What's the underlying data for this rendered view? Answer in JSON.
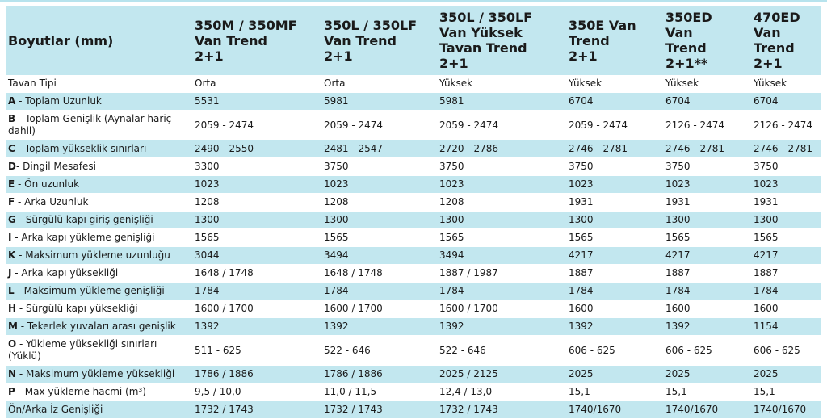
{
  "colors": {
    "row_highlight": "#c2e7ef",
    "top_rule": "#b7e3ed",
    "text": "#1a1a1a",
    "row_plain": "#ffffff"
  },
  "table": {
    "corner_header": "Boyutlar (mm)",
    "columns": [
      "350M / 350MF\nVan Trend\n2+1",
      "350L / 350LF\nVan Trend\n2+1",
      "350L / 350LF\nVan Yüksek\nTavan Trend\n2+1",
      "350E Van\nTrend\n2+1",
      "350ED\nVan\nTrend\n2+1**",
      "470ED\nVan\nTrend\n2+1"
    ],
    "rows": [
      {
        "label_prefix": "",
        "label_text": "Tavan Tipi",
        "values": [
          "Orta",
          "Orta",
          "Yüksek",
          "Yüksek",
          "Yüksek",
          "Yüksek"
        ]
      },
      {
        "label_prefix": "A",
        "label_text": " - Toplam Uzunluk",
        "values": [
          "5531",
          "5981",
          "5981",
          "6704",
          "6704",
          "6704"
        ]
      },
      {
        "label_prefix": "B",
        "label_text": " - Toplam Genişlik (Aynalar hariç -\ndahil)",
        "values": [
          "2059 - 2474",
          "2059 - 2474",
          "2059 - 2474",
          "2059 - 2474",
          "2126 - 2474",
          "2126 - 2474"
        ]
      },
      {
        "label_prefix": "C",
        "label_text": " - Toplam yükseklik sınırları",
        "values": [
          "2490 - 2550",
          "2481 - 2547",
          "2720 - 2786",
          "2746 - 2781",
          "2746 - 2781",
          "2746 - 2781"
        ]
      },
      {
        "label_prefix": "D",
        "label_text": "- Dingil Mesafesi",
        "values": [
          "3300",
          "3750",
          "3750",
          "3750",
          "3750",
          "3750"
        ]
      },
      {
        "label_prefix": "E",
        "label_text": " - Ön uzunluk",
        "values": [
          "1023",
          "1023",
          "1023",
          "1023",
          "1023",
          "1023"
        ]
      },
      {
        "label_prefix": "F",
        "label_text": " - Arka Uzunluk",
        "values": [
          "1208",
          "1208",
          "1208",
          "1931",
          "1931",
          "1931"
        ]
      },
      {
        "label_prefix": "G",
        "label_text": " - Sürgülü kapı giriş genişliği",
        "values": [
          "1300",
          "1300",
          "1300",
          "1300",
          "1300",
          "1300"
        ]
      },
      {
        "label_prefix": "I",
        "label_text": " - Arka kapı yükleme genişliği",
        "values": [
          "1565",
          "1565",
          "1565",
          "1565",
          "1565",
          "1565"
        ]
      },
      {
        "label_prefix": "K",
        "label_text": " - Maksimum yükleme uzunluğu",
        "values": [
          "3044",
          "3494",
          "3494",
          "4217",
          "4217",
          "4217"
        ]
      },
      {
        "label_prefix": "J",
        "label_text": " - Arka kapı yüksekliği",
        "values": [
          "1648 / 1748",
          "1648 / 1748",
          "1887 / 1987",
          "1887",
          "1887",
          "1887"
        ]
      },
      {
        "label_prefix": "L",
        "label_text": " - Maksimum yükleme genişliği",
        "values": [
          "1784",
          "1784",
          "1784",
          "1784",
          "1784",
          "1784"
        ]
      },
      {
        "label_prefix": "H",
        "label_text": " - Sürgülü kapı yüksekliği",
        "values": [
          "1600 / 1700",
          "1600 / 1700",
          "1600 / 1700",
          "1600",
          "1600",
          "1600"
        ]
      },
      {
        "label_prefix": "M",
        "label_text": " - Tekerlek yuvaları arası genişlik",
        "values": [
          "1392",
          "1392",
          "1392",
          "1392",
          "1392",
          "1154"
        ]
      },
      {
        "label_prefix": "O",
        "label_text": " - Yükleme yüksekliği sınırları\n(Yüklü)",
        "values": [
          "511 - 625",
          "522 - 646",
          "522 - 646",
          "606 - 625",
          "606 - 625",
          "606 - 625"
        ]
      },
      {
        "label_prefix": "N",
        "label_text": " - Maksimum yükleme yüksekliği",
        "values": [
          "1786 / 1886",
          "1786 / 1886",
          "2025 / 2125",
          "2025",
          "2025",
          "2025"
        ]
      },
      {
        "label_prefix": "P",
        "label_text": " - Max yükleme hacmi (m³)",
        "values": [
          "9,5 / 10,0",
          "11,0 / 11,5",
          "12,4 / 13,0",
          "15,1",
          "15,1",
          "15,1"
        ]
      },
      {
        "label_prefix": "",
        "label_text": "Ön/Arka İz Genişliği",
        "values": [
          "1732 / 1743",
          "1732 / 1743",
          "1732 / 1743",
          "1740/1670",
          "1740/1670",
          "1740/1670"
        ]
      }
    ]
  }
}
